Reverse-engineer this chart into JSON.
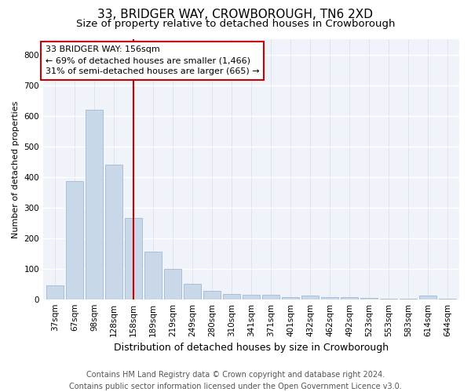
{
  "title1": "33, BRIDGER WAY, CROWBOROUGH, TN6 2XD",
  "title2": "Size of property relative to detached houses in Crowborough",
  "xlabel": "Distribution of detached houses by size in Crowborough",
  "ylabel": "Number of detached properties",
  "categories": [
    "37sqm",
    "67sqm",
    "98sqm",
    "128sqm",
    "158sqm",
    "189sqm",
    "219sqm",
    "249sqm",
    "280sqm",
    "310sqm",
    "341sqm",
    "371sqm",
    "401sqm",
    "432sqm",
    "462sqm",
    "492sqm",
    "523sqm",
    "553sqm",
    "583sqm",
    "614sqm",
    "644sqm"
  ],
  "values": [
    45,
    385,
    620,
    440,
    265,
    155,
    100,
    50,
    28,
    18,
    15,
    15,
    6,
    12,
    8,
    6,
    5,
    3,
    3,
    12,
    3
  ],
  "bar_color": "#c8d8e8",
  "bar_edge_color": "#a8c0d8",
  "vline_x_index": 4,
  "vline_color": "#cc0000",
  "annotation_line1": "33 BRIDGER WAY: 156sqm",
  "annotation_line2": "← 69% of detached houses are smaller (1,466)",
  "annotation_line3": "31% of semi-detached houses are larger (665) →",
  "annotation_box_color": "#ffffff",
  "annotation_box_edge": "#cc0000",
  "ylim": [
    0,
    850
  ],
  "yticks": [
    0,
    100,
    200,
    300,
    400,
    500,
    600,
    700,
    800
  ],
  "background_color": "#ffffff",
  "plot_bg_color": "#f0f4fa",
  "grid_color_y": "#ffffff",
  "grid_color_x": "#d8dde8",
  "footer": "Contains HM Land Registry data © Crown copyright and database right 2024.\nContains public sector information licensed under the Open Government Licence v3.0.",
  "title1_fontsize": 11,
  "title2_fontsize": 9.5,
  "xlabel_fontsize": 9,
  "ylabel_fontsize": 8,
  "tick_fontsize": 7.5,
  "annotation_fontsize": 8,
  "footer_fontsize": 7
}
